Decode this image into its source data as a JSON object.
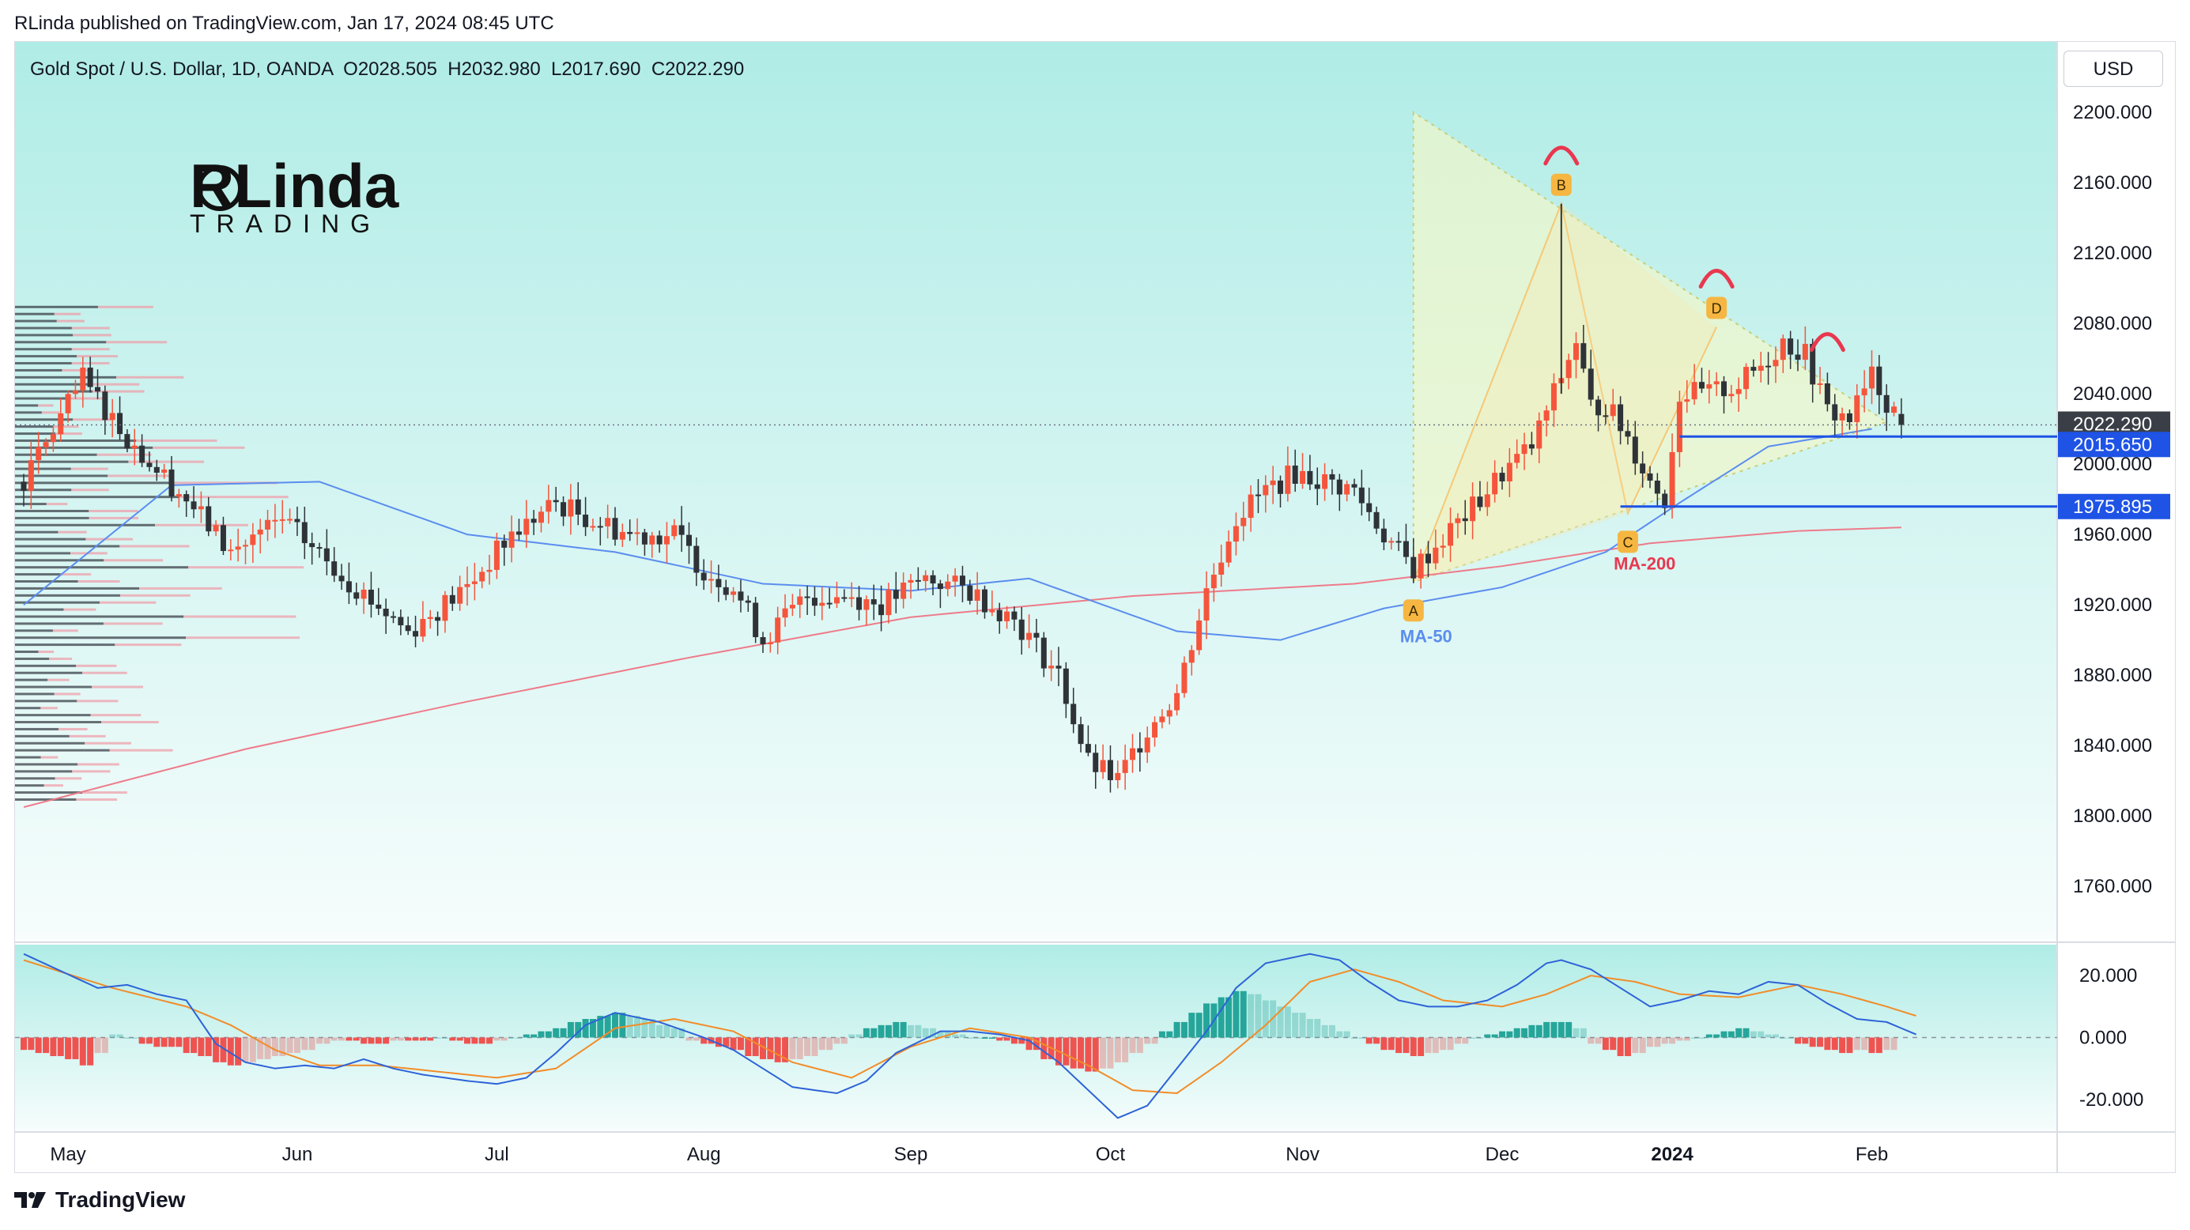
{
  "header": {
    "published_line": "RLinda published on TradingView.com, Jan 17, 2024 08:45 UTC",
    "symbol_line": "Gold Spot / U.S. Dollar, 1D, OANDA  O2028.505  H2032.980  L2017.690  C2022.290",
    "currency_button": "USD"
  },
  "logo": {
    "top": "RLinda",
    "bottom": "TRADING"
  },
  "footer": {
    "brand": "TradingView"
  },
  "colors": {
    "up": "#f5553c",
    "down": "#2f3338",
    "ma50": "#5b8def",
    "ma200": "#ee7b8a",
    "level": "#1e53e5",
    "peak_arc": "#e8384f",
    "badge": "#f6b642",
    "macd_line": "#2d62d8",
    "signal_line": "#f28c28",
    "hist_up": "#26a69a",
    "hist_down": "#ef5350"
  },
  "chart_data": {
    "type": "candlestick",
    "title": "Gold Spot / U.S. Dollar, 1D, OANDA",
    "ohlc_last": {
      "open": 2028.505,
      "high": 2032.98,
      "low": 2017.69,
      "close": 2022.29
    },
    "y_axis": {
      "ylim": [
        1730,
        2240
      ],
      "ticks": [
        "2200.000",
        "2160.000",
        "2120.000",
        "2080.000",
        "2040.000",
        "2000.000",
        "1960.000",
        "1920.000",
        "1880.000",
        "1840.000",
        "1800.000",
        "1760.000"
      ]
    },
    "x_axis": {
      "months": [
        "May",
        "Jun",
        "Jul",
        "Aug",
        "Sep",
        "Oct",
        "Nov",
        "Dec",
        "2024",
        "Feb"
      ]
    },
    "price_tags": [
      {
        "value": "2022.290",
        "kind": "last"
      },
      {
        "value": "2015.650",
        "kind": "level"
      },
      {
        "value": "1975.895",
        "kind": "level"
      }
    ],
    "anchors": [
      [
        0,
        1990
      ],
      [
        8,
        2048
      ],
      [
        15,
        2010
      ],
      [
        22,
        1980
      ],
      [
        28,
        1950
      ],
      [
        35,
        1968
      ],
      [
        45,
        1930
      ],
      [
        52,
        1905
      ],
      [
        60,
        1930
      ],
      [
        66,
        1960
      ],
      [
        72,
        1978
      ],
      [
        76,
        1970
      ],
      [
        82,
        1960
      ],
      [
        88,
        1960
      ],
      [
        92,
        1940
      ],
      [
        96,
        1930
      ],
      [
        100,
        1900
      ],
      [
        106,
        1925
      ],
      [
        112,
        1925
      ],
      [
        116,
        1920
      ],
      [
        122,
        1935
      ],
      [
        128,
        1928
      ],
      [
        134,
        1912
      ],
      [
        140,
        1880
      ],
      [
        144,
        1830
      ],
      [
        148,
        1820
      ],
      [
        152,
        1850
      ],
      [
        156,
        1870
      ],
      [
        160,
        1928
      ],
      [
        164,
        1970
      ],
      [
        168,
        1985
      ],
      [
        172,
        1995
      ],
      [
        176,
        1990
      ],
      [
        180,
        1985
      ],
      [
        184,
        1960
      ],
      [
        188,
        1940
      ],
      [
        192,
        1958
      ],
      [
        196,
        1975
      ],
      [
        200,
        1995
      ],
      [
        204,
        2010
      ],
      [
        207,
        2040
      ],
      [
        210,
        2070
      ],
      [
        212,
        2032
      ],
      [
        214,
        2034
      ],
      [
        217,
        2015
      ],
      [
        220,
        1990
      ],
      [
        222,
        1980
      ],
      [
        224,
        2040
      ],
      [
        228,
        2040
      ],
      [
        232,
        2045
      ],
      [
        236,
        2060
      ],
      [
        238,
        2070
      ],
      [
        241,
        2062
      ],
      [
        244,
        2030
      ],
      [
        247,
        2026
      ],
      [
        250,
        2050
      ],
      [
        252,
        2036
      ],
      [
        254,
        2025
      ]
    ],
    "ma50": [
      [
        0,
        1920
      ],
      [
        20,
        1988
      ],
      [
        40,
        1990
      ],
      [
        60,
        1960
      ],
      [
        80,
        1950
      ],
      [
        100,
        1932
      ],
      [
        120,
        1928
      ],
      [
        136,
        1935
      ],
      [
        146,
        1920
      ],
      [
        156,
        1905
      ],
      [
        170,
        1900
      ],
      [
        184,
        1918
      ],
      [
        200,
        1930
      ],
      [
        214,
        1950
      ],
      [
        224,
        1978
      ],
      [
        236,
        2010
      ],
      [
        250,
        2020
      ]
    ],
    "ma200": [
      [
        0,
        1805
      ],
      [
        30,
        1838
      ],
      [
        60,
        1865
      ],
      [
        90,
        1890
      ],
      [
        120,
        1913
      ],
      [
        150,
        1925
      ],
      [
        180,
        1932
      ],
      [
        200,
        1942
      ],
      [
        220,
        1955
      ],
      [
        240,
        1962
      ],
      [
        254,
        1964
      ]
    ],
    "pattern": {
      "points": [
        {
          "label": "A",
          "bar": 188,
          "price": 1933
        },
        {
          "label": "B",
          "bar": 208,
          "price": 2148
        },
        {
          "label": "C",
          "bar": 217,
          "price": 1972
        },
        {
          "label": "D",
          "bar": 229,
          "price": 2078
        }
      ],
      "triangle": [
        [
          188,
          2200
        ],
        [
          188,
          1933
        ],
        [
          252,
          2024
        ]
      ],
      "peak_arcs": [
        208,
        229,
        244
      ]
    },
    "labels": {
      "ma50": "MA-50",
      "ma200": "MA-200"
    },
    "macd": {
      "ylim": [
        -30,
        30
      ],
      "ticks": [
        "20.000",
        "0.000",
        "-20.000"
      ],
      "macd_line": [
        [
          0,
          27
        ],
        [
          10,
          16
        ],
        [
          14,
          17
        ],
        [
          18,
          14
        ],
        [
          22,
          12
        ],
        [
          26,
          -2
        ],
        [
          30,
          -8
        ],
        [
          34,
          -10
        ],
        [
          38,
          -9
        ],
        [
          42,
          -10
        ],
        [
          46,
          -7
        ],
        [
          50,
          -10
        ],
        [
          54,
          -12
        ],
        [
          60,
          -14
        ],
        [
          64,
          -15
        ],
        [
          68,
          -13
        ],
        [
          72,
          -5
        ],
        [
          76,
          4
        ],
        [
          80,
          8
        ],
        [
          86,
          5
        ],
        [
          92,
          0
        ],
        [
          96,
          -4
        ],
        [
          100,
          -10
        ],
        [
          104,
          -16
        ],
        [
          110,
          -18
        ],
        [
          114,
          -14
        ],
        [
          118,
          -5
        ],
        [
          124,
          2
        ],
        [
          128,
          2
        ],
        [
          132,
          1
        ],
        [
          136,
          -1
        ],
        [
          140,
          -8
        ],
        [
          144,
          -17
        ],
        [
          148,
          -26
        ],
        [
          152,
          -22
        ],
        [
          156,
          -10
        ],
        [
          160,
          2
        ],
        [
          164,
          16
        ],
        [
          168,
          24
        ],
        [
          174,
          27
        ],
        [
          178,
          25
        ],
        [
          182,
          18
        ],
        [
          186,
          12
        ],
        [
          190,
          10
        ],
        [
          194,
          10
        ],
        [
          198,
          12
        ],
        [
          202,
          17
        ],
        [
          206,
          24
        ],
        [
          208,
          25
        ],
        [
          212,
          22
        ],
        [
          216,
          16
        ],
        [
          220,
          10
        ],
        [
          224,
          12
        ],
        [
          228,
          15
        ],
        [
          232,
          14
        ],
        [
          236,
          18
        ],
        [
          240,
          17
        ],
        [
          244,
          11
        ],
        [
          248,
          6
        ],
        [
          252,
          5
        ],
        [
          256,
          1
        ]
      ],
      "signal_line": [
        [
          0,
          25
        ],
        [
          12,
          16
        ],
        [
          22,
          10
        ],
        [
          28,
          4
        ],
        [
          34,
          -4
        ],
        [
          40,
          -9
        ],
        [
          48,
          -9
        ],
        [
          56,
          -11
        ],
        [
          64,
          -13
        ],
        [
          72,
          -10
        ],
        [
          80,
          3
        ],
        [
          88,
          6
        ],
        [
          96,
          2
        ],
        [
          104,
          -8
        ],
        [
          112,
          -13
        ],
        [
          120,
          -3
        ],
        [
          128,
          3
        ],
        [
          136,
          0
        ],
        [
          144,
          -9
        ],
        [
          150,
          -17
        ],
        [
          156,
          -18
        ],
        [
          162,
          -8
        ],
        [
          168,
          4
        ],
        [
          174,
          18
        ],
        [
          180,
          22
        ],
        [
          186,
          18
        ],
        [
          192,
          12
        ],
        [
          200,
          10
        ],
        [
          206,
          14
        ],
        [
          212,
          20
        ],
        [
          218,
          18
        ],
        [
          224,
          14
        ],
        [
          232,
          13
        ],
        [
          240,
          17
        ],
        [
          246,
          14
        ],
        [
          252,
          10
        ],
        [
          256,
          7
        ]
      ],
      "hist": [
        [
          0,
          -4
        ],
        [
          2,
          -5
        ],
        [
          4,
          -6
        ],
        [
          6,
          -7
        ],
        [
          8,
          -9
        ],
        [
          10,
          -5
        ],
        [
          12,
          1
        ],
        [
          14,
          0
        ],
        [
          16,
          -2
        ],
        [
          18,
          -3
        ],
        [
          20,
          -3
        ],
        [
          22,
          -5
        ],
        [
          24,
          -6
        ],
        [
          26,
          -8
        ],
        [
          28,
          -9
        ],
        [
          30,
          -8
        ],
        [
          32,
          -7
        ],
        [
          34,
          -6
        ],
        [
          36,
          -5
        ],
        [
          38,
          -4
        ],
        [
          40,
          -2
        ],
        [
          42,
          -1
        ],
        [
          44,
          -1
        ],
        [
          46,
          -2
        ],
        [
          48,
          -2
        ],
        [
          50,
          -1
        ],
        [
          52,
          -1
        ],
        [
          54,
          -1
        ],
        [
          56,
          0
        ],
        [
          58,
          -1
        ],
        [
          60,
          -2
        ],
        [
          62,
          -2
        ],
        [
          64,
          -1
        ],
        [
          66,
          0
        ],
        [
          68,
          1
        ],
        [
          70,
          2
        ],
        [
          72,
          3
        ],
        [
          74,
          5
        ],
        [
          76,
          6
        ],
        [
          78,
          7
        ],
        [
          80,
          8
        ],
        [
          82,
          7
        ],
        [
          84,
          6
        ],
        [
          86,
          4
        ],
        [
          88,
          3
        ],
        [
          90,
          -1
        ],
        [
          92,
          -2
        ],
        [
          94,
          -3
        ],
        [
          96,
          -4
        ],
        [
          98,
          -6
        ],
        [
          100,
          -7
        ],
        [
          102,
          -8
        ],
        [
          104,
          -7
        ],
        [
          106,
          -6
        ],
        [
          108,
          -4
        ],
        [
          110,
          -2
        ],
        [
          112,
          1
        ],
        [
          114,
          3
        ],
        [
          116,
          4
        ],
        [
          118,
          5
        ],
        [
          120,
          4
        ],
        [
          122,
          3
        ],
        [
          124,
          2
        ],
        [
          126,
          1
        ],
        [
          128,
          0
        ],
        [
          130,
          0
        ],
        [
          132,
          -1
        ],
        [
          134,
          -2
        ],
        [
          136,
          -4
        ],
        [
          138,
          -7
        ],
        [
          140,
          -9
        ],
        [
          142,
          -10
        ],
        [
          144,
          -11
        ],
        [
          146,
          -10
        ],
        [
          148,
          -8
        ],
        [
          150,
          -5
        ],
        [
          152,
          -2
        ],
        [
          154,
          2
        ],
        [
          156,
          5
        ],
        [
          158,
          8
        ],
        [
          160,
          11
        ],
        [
          162,
          13
        ],
        [
          164,
          15
        ],
        [
          166,
          14
        ],
        [
          168,
          12
        ],
        [
          170,
          10
        ],
        [
          172,
          8
        ],
        [
          174,
          6
        ],
        [
          176,
          4
        ],
        [
          178,
          2
        ],
        [
          180,
          0
        ],
        [
          182,
          -2
        ],
        [
          184,
          -4
        ],
        [
          186,
          -5
        ],
        [
          188,
          -6
        ],
        [
          190,
          -5
        ],
        [
          192,
          -4
        ],
        [
          194,
          -2
        ],
        [
          196,
          0
        ],
        [
          198,
          1
        ],
        [
          200,
          2
        ],
        [
          202,
          3
        ],
        [
          204,
          4
        ],
        [
          206,
          5
        ],
        [
          208,
          5
        ],
        [
          210,
          3
        ],
        [
          212,
          -2
        ],
        [
          214,
          -4
        ],
        [
          216,
          -6
        ],
        [
          218,
          -5
        ],
        [
          220,
          -3
        ],
        [
          222,
          -2
        ],
        [
          224,
          -1
        ],
        [
          226,
          0
        ],
        [
          228,
          1
        ],
        [
          230,
          2
        ],
        [
          232,
          3
        ],
        [
          234,
          2
        ],
        [
          236,
          1
        ],
        [
          238,
          0
        ],
        [
          240,
          -2
        ],
        [
          242,
          -3
        ],
        [
          244,
          -4
        ],
        [
          246,
          -5
        ],
        [
          248,
          -4
        ],
        [
          250,
          -5
        ],
        [
          252,
          -4
        ]
      ]
    }
  }
}
